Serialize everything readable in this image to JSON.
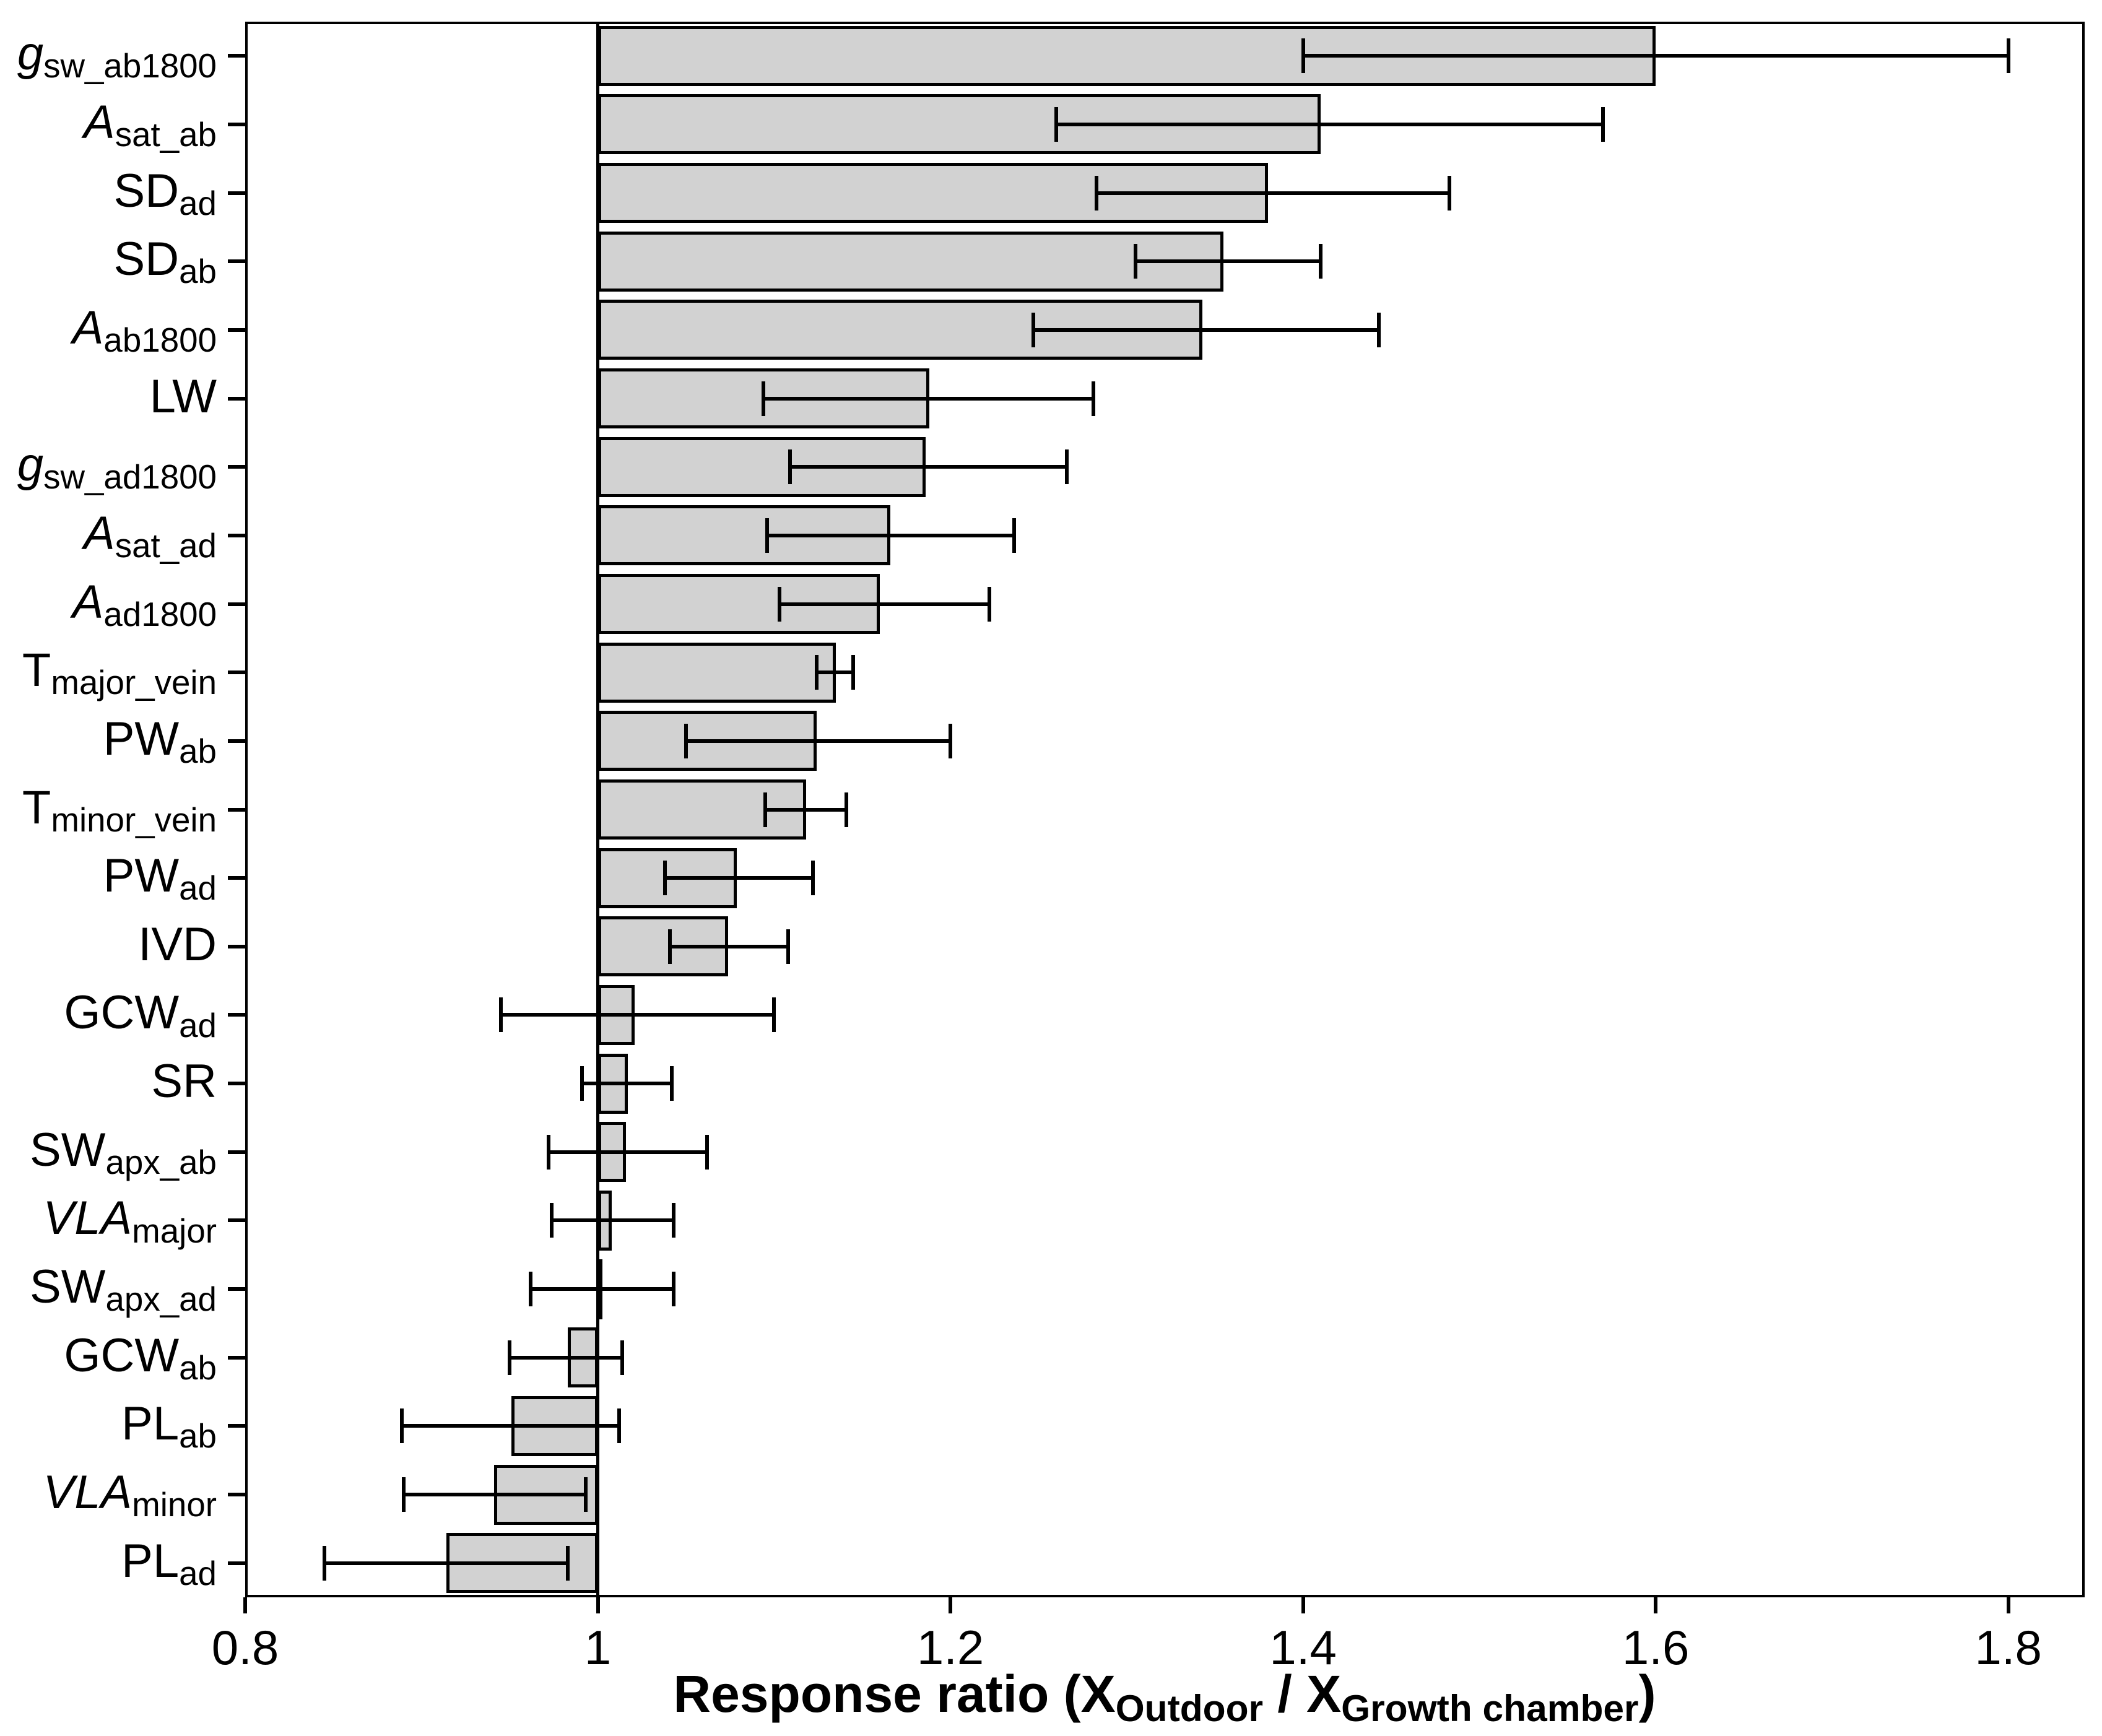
{
  "chart_data": {
    "type": "bar",
    "orientation": "horizontal",
    "title": "",
    "xlabel_segments": [
      {
        "text": "Response ratio (X"
      },
      {
        "text": "Outdoor",
        "sub": true
      },
      {
        "text": " / X"
      },
      {
        "text": "Growth chamber",
        "sub": true
      },
      {
        "text": ")"
      }
    ],
    "xlim": [
      0.8,
      1.8433
    ],
    "baseline": 1.0,
    "xticks": [
      {
        "value": 0.8,
        "label": "0.8"
      },
      {
        "value": 1.0,
        "label": "1"
      },
      {
        "value": 1.2,
        "label": "1.2"
      },
      {
        "value": 1.4,
        "label": "1.4"
      },
      {
        "value": 1.6,
        "label": "1.6"
      },
      {
        "value": 1.8,
        "label": "1.8"
      }
    ],
    "grid": false,
    "legend": false,
    "bar_fill_color": "#d2d2d2",
    "bar_border_color": "#000000",
    "error_bar_color": "#000000",
    "categories": [
      {
        "id": "gsw_ab1800",
        "segments": [
          {
            "text": "g",
            "italic": true
          },
          {
            "text": "sw_ab1800",
            "sub": true
          }
        ],
        "value": 1.6,
        "ci_low": 1.4,
        "ci_high": 1.8
      },
      {
        "id": "Asat_ab",
        "segments": [
          {
            "text": "A",
            "italic": true
          },
          {
            "text": "sat_ab",
            "sub": true
          }
        ],
        "value": 1.41,
        "ci_low": 1.26,
        "ci_high": 1.57
      },
      {
        "id": "SD_ad",
        "segments": [
          {
            "text": "SD"
          },
          {
            "text": "ad",
            "sub": true
          }
        ],
        "value": 1.38,
        "ci_low": 1.283,
        "ci_high": 1.483
      },
      {
        "id": "SD_ab",
        "segments": [
          {
            "text": "SD"
          },
          {
            "text": "ab",
            "sub": true
          }
        ],
        "value": 1.355,
        "ci_low": 1.305,
        "ci_high": 1.41
      },
      {
        "id": "A_ab1800",
        "segments": [
          {
            "text": "A",
            "italic": true
          },
          {
            "text": "ab1800",
            "sub": true
          }
        ],
        "value": 1.343,
        "ci_low": 1.247,
        "ci_high": 1.443
      },
      {
        "id": "LW",
        "segments": [
          {
            "text": "LW"
          }
        ],
        "value": 1.188,
        "ci_low": 1.094,
        "ci_high": 1.281
      },
      {
        "id": "gsw_ad1800",
        "segments": [
          {
            "text": "g",
            "italic": true
          },
          {
            "text": "sw_ad1800",
            "sub": true
          }
        ],
        "value": 1.186,
        "ci_low": 1.109,
        "ci_high": 1.266
      },
      {
        "id": "Asat_ad",
        "segments": [
          {
            "text": "A",
            "italic": true
          },
          {
            "text": "sat_ad",
            "sub": true
          }
        ],
        "value": 1.166,
        "ci_low": 1.096,
        "ci_high": 1.236
      },
      {
        "id": "A_ad1800",
        "segments": [
          {
            "text": "A",
            "italic": true
          },
          {
            "text": "ad1800",
            "sub": true
          }
        ],
        "value": 1.16,
        "ci_low": 1.103,
        "ci_high": 1.222
      },
      {
        "id": "T_major_vein",
        "segments": [
          {
            "text": "T"
          },
          {
            "text": "major_vein",
            "sub": true
          }
        ],
        "value": 1.135,
        "ci_low": 1.124,
        "ci_high": 1.145
      },
      {
        "id": "PW_ab",
        "segments": [
          {
            "text": "PW"
          },
          {
            "text": "ab",
            "sub": true
          }
        ],
        "value": 1.124,
        "ci_low": 1.05,
        "ci_high": 1.2
      },
      {
        "id": "T_minor_vein",
        "segments": [
          {
            "text": "T"
          },
          {
            "text": "minor_vein",
            "sub": true
          }
        ],
        "value": 1.118,
        "ci_low": 1.095,
        "ci_high": 1.141
      },
      {
        "id": "PW_ad",
        "segments": [
          {
            "text": "PW"
          },
          {
            "text": "ad",
            "sub": true
          }
        ],
        "value": 1.079,
        "ci_low": 1.038,
        "ci_high": 1.122
      },
      {
        "id": "IVD",
        "segments": [
          {
            "text": "IVD"
          }
        ],
        "value": 1.074,
        "ci_low": 1.041,
        "ci_high": 1.108
      },
      {
        "id": "GCW_ad",
        "segments": [
          {
            "text": "GCW"
          },
          {
            "text": "ad",
            "sub": true
          }
        ],
        "value": 1.021,
        "ci_low": 0.945,
        "ci_high": 1.1
      },
      {
        "id": "SR",
        "segments": [
          {
            "text": "SR"
          }
        ],
        "value": 1.017,
        "ci_low": 0.991,
        "ci_high": 1.042
      },
      {
        "id": "SW_apx_ab",
        "segments": [
          {
            "text": "SW"
          },
          {
            "text": "apx_ab",
            "sub": true
          }
        ],
        "value": 1.016,
        "ci_low": 0.972,
        "ci_high": 1.062
      },
      {
        "id": "VLA_major",
        "segments": [
          {
            "text": "VLA",
            "italic": true
          },
          {
            "text": "major",
            "sub": true
          }
        ],
        "value": 1.008,
        "ci_low": 0.974,
        "ci_high": 1.043
      },
      {
        "id": "SW_apx_ad",
        "segments": [
          {
            "text": "SW"
          },
          {
            "text": "apx_ad",
            "sub": true
          }
        ],
        "value": 0.999,
        "ci_low": 0.962,
        "ci_high": 1.043
      },
      {
        "id": "GCW_ab",
        "segments": [
          {
            "text": "GCW"
          },
          {
            "text": "ab",
            "sub": true
          }
        ],
        "value": 0.983,
        "ci_low": 0.95,
        "ci_high": 1.014
      },
      {
        "id": "PL_ab",
        "segments": [
          {
            "text": "PL"
          },
          {
            "text": "ab",
            "sub": true
          }
        ],
        "value": 0.951,
        "ci_low": 0.889,
        "ci_high": 1.012
      },
      {
        "id": "VLA_minor",
        "segments": [
          {
            "text": "VLA",
            "italic": true
          },
          {
            "text": "minor",
            "sub": true
          }
        ],
        "value": 0.941,
        "ci_low": 0.89,
        "ci_high": 0.993
      },
      {
        "id": "PL_ad",
        "segments": [
          {
            "text": "PL"
          },
          {
            "text": "ad",
            "sub": true
          }
        ],
        "value": 0.914,
        "ci_low": 0.845,
        "ci_high": 0.983
      }
    ]
  }
}
